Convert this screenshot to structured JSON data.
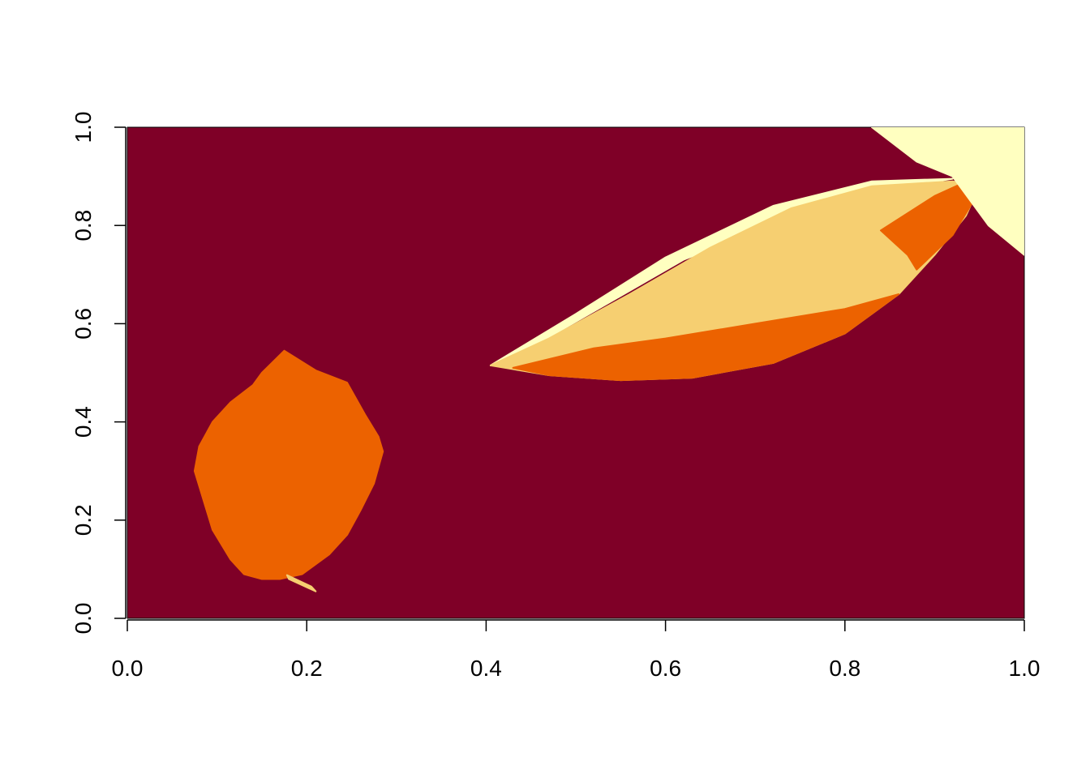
{
  "chart_data": {
    "type": "heatmap",
    "title": "",
    "xlabel": "",
    "ylabel": "",
    "xlim": [
      0,
      1
    ],
    "ylim": [
      0,
      1
    ],
    "x_ticks": [
      0.0,
      0.2,
      0.4,
      0.6,
      0.8,
      1.0
    ],
    "x_tick_labels": [
      "0.0",
      "0.2",
      "0.4",
      "0.6",
      "0.8",
      "1.0"
    ],
    "y_ticks": [
      0.0,
      0.2,
      0.4,
      0.6,
      0.8,
      1.0
    ],
    "y_tick_labels": [
      "0.0",
      "0.2",
      "0.4",
      "0.6",
      "0.8",
      "1.0"
    ],
    "grid": false,
    "legend": "none",
    "palette": [
      "#7F0027",
      "#EC6200",
      "#F6CF71",
      "#FFFFC0"
    ],
    "regions": [
      {
        "name": "leaf-round",
        "color_index": 1,
        "outline": [
          [
            0.175,
            0.545
          ],
          [
            0.21,
            0.505
          ],
          [
            0.245,
            0.48
          ],
          [
            0.265,
            0.415
          ],
          [
            0.28,
            0.37
          ],
          [
            0.285,
            0.34
          ],
          [
            0.275,
            0.275
          ],
          [
            0.26,
            0.22
          ],
          [
            0.245,
            0.17
          ],
          [
            0.225,
            0.13
          ],
          [
            0.195,
            0.09
          ],
          [
            0.17,
            0.08
          ],
          [
            0.15,
            0.08
          ],
          [
            0.13,
            0.09
          ],
          [
            0.115,
            0.12
          ],
          [
            0.095,
            0.18
          ],
          [
            0.085,
            0.24
          ],
          [
            0.075,
            0.3
          ],
          [
            0.08,
            0.35
          ],
          [
            0.095,
            0.4
          ],
          [
            0.115,
            0.44
          ],
          [
            0.14,
            0.475
          ],
          [
            0.15,
            0.5
          ]
        ]
      },
      {
        "name": "leaf-stem",
        "color_index": 2,
        "outline": [
          [
            0.18,
            0.08
          ],
          [
            0.21,
            0.055
          ],
          [
            0.205,
            0.065
          ],
          [
            0.178,
            0.088
          ]
        ]
      },
      {
        "name": "leaf-long-highlight",
        "color_index": 3,
        "outline": [
          [
            0.405,
            0.515
          ],
          [
            0.5,
            0.62
          ],
          [
            0.6,
            0.735
          ],
          [
            0.72,
            0.84
          ],
          [
            0.83,
            0.89
          ],
          [
            0.92,
            0.895
          ],
          [
            0.8,
            0.86
          ],
          [
            0.62,
            0.73
          ],
          [
            0.42,
            0.52
          ]
        ]
      },
      {
        "name": "leaf-long",
        "color_index": 2,
        "outline": [
          [
            0.405,
            0.515
          ],
          [
            0.47,
            0.57
          ],
          [
            0.56,
            0.66
          ],
          [
            0.65,
            0.755
          ],
          [
            0.74,
            0.835
          ],
          [
            0.83,
            0.88
          ],
          [
            0.92,
            0.89
          ],
          [
            0.95,
            0.88
          ],
          [
            0.935,
            0.82
          ],
          [
            0.9,
            0.74
          ],
          [
            0.86,
            0.66
          ],
          [
            0.8,
            0.58
          ],
          [
            0.72,
            0.52
          ],
          [
            0.63,
            0.49
          ],
          [
            0.55,
            0.485
          ],
          [
            0.47,
            0.495
          ]
        ]
      },
      {
        "name": "leaf-long-underside",
        "color_index": 1,
        "outline": [
          [
            0.43,
            0.51
          ],
          [
            0.52,
            0.55
          ],
          [
            0.6,
            0.57
          ],
          [
            0.7,
            0.6
          ],
          [
            0.8,
            0.63
          ],
          [
            0.86,
            0.66
          ],
          [
            0.8,
            0.58
          ],
          [
            0.72,
            0.52
          ],
          [
            0.63,
            0.49
          ],
          [
            0.55,
            0.485
          ],
          [
            0.47,
            0.495
          ]
        ]
      },
      {
        "name": "leaf-long-tip",
        "color_index": 1,
        "outline": [
          [
            0.84,
            0.79
          ],
          [
            0.9,
            0.86
          ],
          [
            0.93,
            0.885
          ],
          [
            0.95,
            0.87
          ],
          [
            0.92,
            0.78
          ],
          [
            0.88,
            0.71
          ],
          [
            0.87,
            0.74
          ]
        ]
      },
      {
        "name": "glare-corner",
        "color_index": 3,
        "outline": [
          [
            0.83,
            1.0
          ],
          [
            1.0,
            1.0
          ],
          [
            1.0,
            0.74
          ],
          [
            0.96,
            0.8
          ],
          [
            0.92,
            0.9
          ],
          [
            0.88,
            0.93
          ]
        ]
      }
    ]
  }
}
